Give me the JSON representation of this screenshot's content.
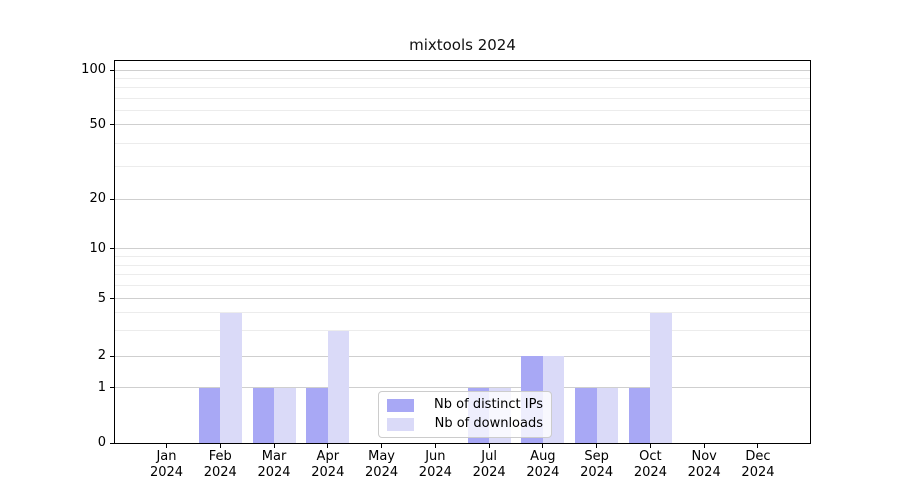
{
  "chart_data": {
    "type": "bar",
    "title": "mixtools 2024",
    "categories": [
      "Jan",
      "Feb",
      "Mar",
      "Apr",
      "May",
      "Jun",
      "Jul",
      "Aug",
      "Sep",
      "Oct",
      "Nov",
      "Dec"
    ],
    "x_tick_year": "2024",
    "series": [
      {
        "name": "Nb of distinct IPs",
        "color": "#a8a8f5",
        "values": [
          0,
          1,
          1,
          1,
          0,
          0,
          1,
          2,
          1,
          1,
          0,
          0
        ]
      },
      {
        "name": "Nb of downloads",
        "color": "#dadaf8",
        "values": [
          0,
          4,
          1,
          3,
          0,
          0,
          1,
          2,
          1,
          4,
          0,
          0
        ]
      }
    ],
    "yticks": [
      0,
      1,
      2,
      5,
      10,
      20,
      50,
      100
    ],
    "minor_gridlines": [
      3,
      4,
      6,
      7,
      8,
      9,
      30,
      40,
      60,
      70,
      80,
      90
    ],
    "ylim_labels": [
      0,
      100
    ],
    "y_scale_anchors": [
      [
        0,
        0.0
      ],
      [
        1,
        0.144
      ],
      [
        2,
        0.2277
      ],
      [
        5,
        0.377
      ],
      [
        10,
        0.5079
      ],
      [
        20,
        0.6387
      ],
      [
        50,
        0.8325
      ],
      [
        100,
        0.9764
      ]
    ],
    "grid": "on",
    "legend": {
      "position": "bottom-center"
    },
    "colors": {
      "grid_major": "#cfcfcf",
      "grid_minor": "#ececec",
      "axis": "#000000",
      "text": "#000000",
      "legend_border": "#cccccc"
    }
  }
}
